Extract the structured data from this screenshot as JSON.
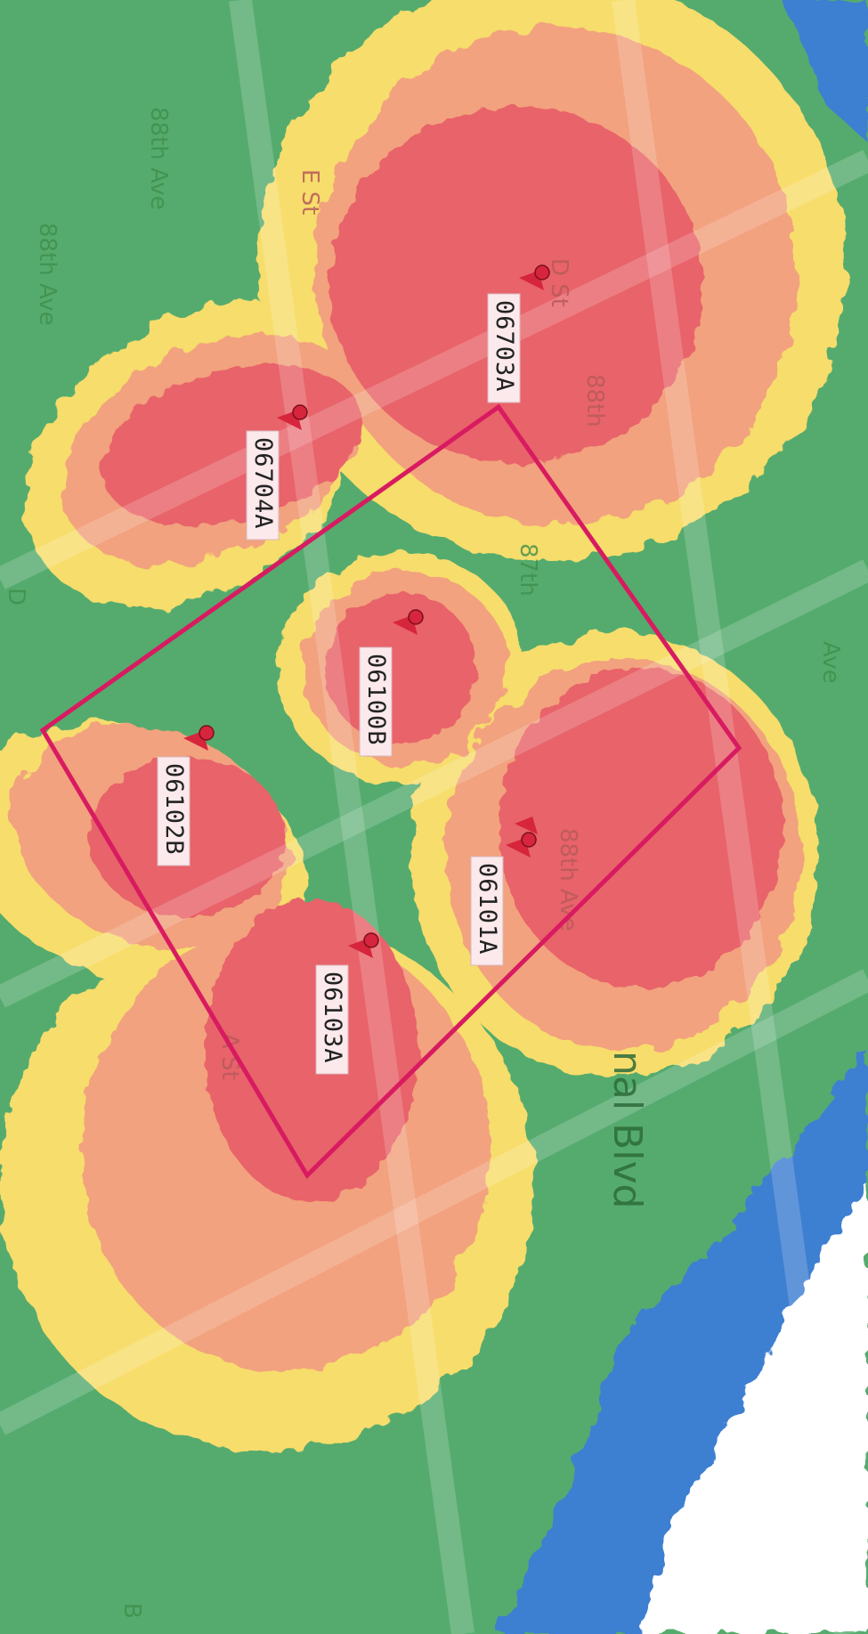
{
  "map": {
    "colors": {
      "strong": "#e8646a",
      "good": "#f2a27e",
      "fair": "#f7dd6c",
      "weak": "#55ab6e",
      "none": "#3e7fd1",
      "background": "#ffffff",
      "pin": "#d6253c",
      "frame": "#d81b60"
    },
    "access_points": [
      {
        "id": "06703A",
        "label": "06703A"
      },
      {
        "id": "06704A",
        "label": "06704A"
      },
      {
        "id": "06100B",
        "label": "06100B"
      },
      {
        "id": "06102B",
        "label": "06102B"
      },
      {
        "id": "06101A",
        "label": "06101A"
      },
      {
        "id": "06103A",
        "label": "06103A"
      }
    ],
    "streets": {
      "ave_88_top": "88th Ave",
      "ave_88_left": "88th Ave",
      "ave_87": "87th",
      "ave_88_mid": "88th",
      "ave_88_bottom": "88th Ave",
      "st_e": "E St",
      "st_d": "D St",
      "st_d_left": "D",
      "st_a": "A St",
      "blvd": "nal Blvd",
      "ave_right": "Ave",
      "b_st": "B"
    },
    "icons": {
      "pin": "map-pin-icon"
    }
  }
}
